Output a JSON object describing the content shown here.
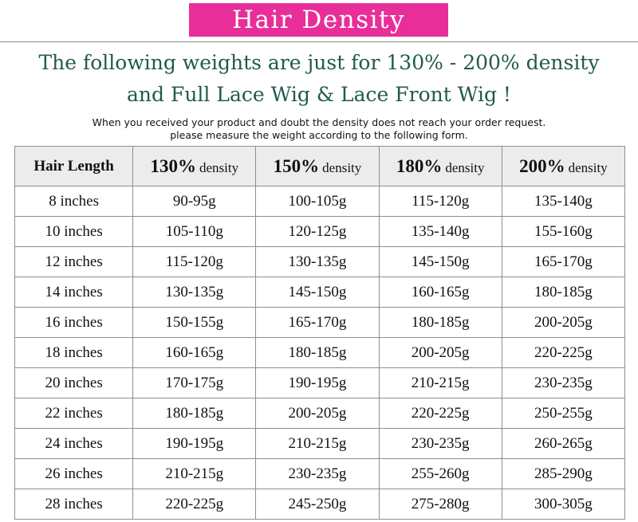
{
  "banner": {
    "title": "Hair Density"
  },
  "headline": {
    "line1": "The following weights are just for 130% - 200% density",
    "line2": "and Full Lace Wig & Lace Front Wig !"
  },
  "note": {
    "line1": "When you received your product and doubt the density does not reach your order request.",
    "line2": "please measure the weight according to the following form."
  },
  "table": {
    "length_header": "Hair Length",
    "density_headers": [
      {
        "pct": "130%",
        "word": "density"
      },
      {
        "pct": "150%",
        "word": "density"
      },
      {
        "pct": "180%",
        "word": "density"
      },
      {
        "pct": "200%",
        "word": "density"
      }
    ],
    "rows": [
      {
        "length": "8 inches",
        "w130": "90-95g",
        "w150": "100-105g",
        "w180": "115-120g",
        "w200": "135-140g"
      },
      {
        "length": "10 inches",
        "w130": "105-110g",
        "w150": "120-125g",
        "w180": "135-140g",
        "w200": "155-160g"
      },
      {
        "length": "12 inches",
        "w130": "115-120g",
        "w150": "130-135g",
        "w180": "145-150g",
        "w200": "165-170g"
      },
      {
        "length": "14 inches",
        "w130": "130-135g",
        "w150": "145-150g",
        "w180": "160-165g",
        "w200": "180-185g"
      },
      {
        "length": "16 inches",
        "w130": "150-155g",
        "w150": "165-170g",
        "w180": "180-185g",
        "w200": "200-205g"
      },
      {
        "length": "18 inches",
        "w130": "160-165g",
        "w150": "180-185g",
        "w180": "200-205g",
        "w200": "220-225g"
      },
      {
        "length": "20 inches",
        "w130": "170-175g",
        "w150": "190-195g",
        "w180": "210-215g",
        "w200": "230-235g"
      },
      {
        "length": "22 inches",
        "w130": "180-185g",
        "w150": "200-205g",
        "w180": "220-225g",
        "w200": "250-255g"
      },
      {
        "length": "24 inches",
        "w130": "190-195g",
        "w150": "210-215g",
        "w180": "230-235g",
        "w200": "260-265g"
      },
      {
        "length": "26 inches",
        "w130": "210-215g",
        "w150": "230-235g",
        "w180": "255-260g",
        "w200": "285-290g"
      },
      {
        "length": "28 inches",
        "w130": "220-225g",
        "w150": "245-250g",
        "w180": "275-280g",
        "w200": "300-305g"
      }
    ]
  },
  "colors": {
    "banner_bg": "#e82e99",
    "headline_text": "#215a50",
    "header_row_bg": "#ececec",
    "grid_line": "#8e8e8e"
  }
}
